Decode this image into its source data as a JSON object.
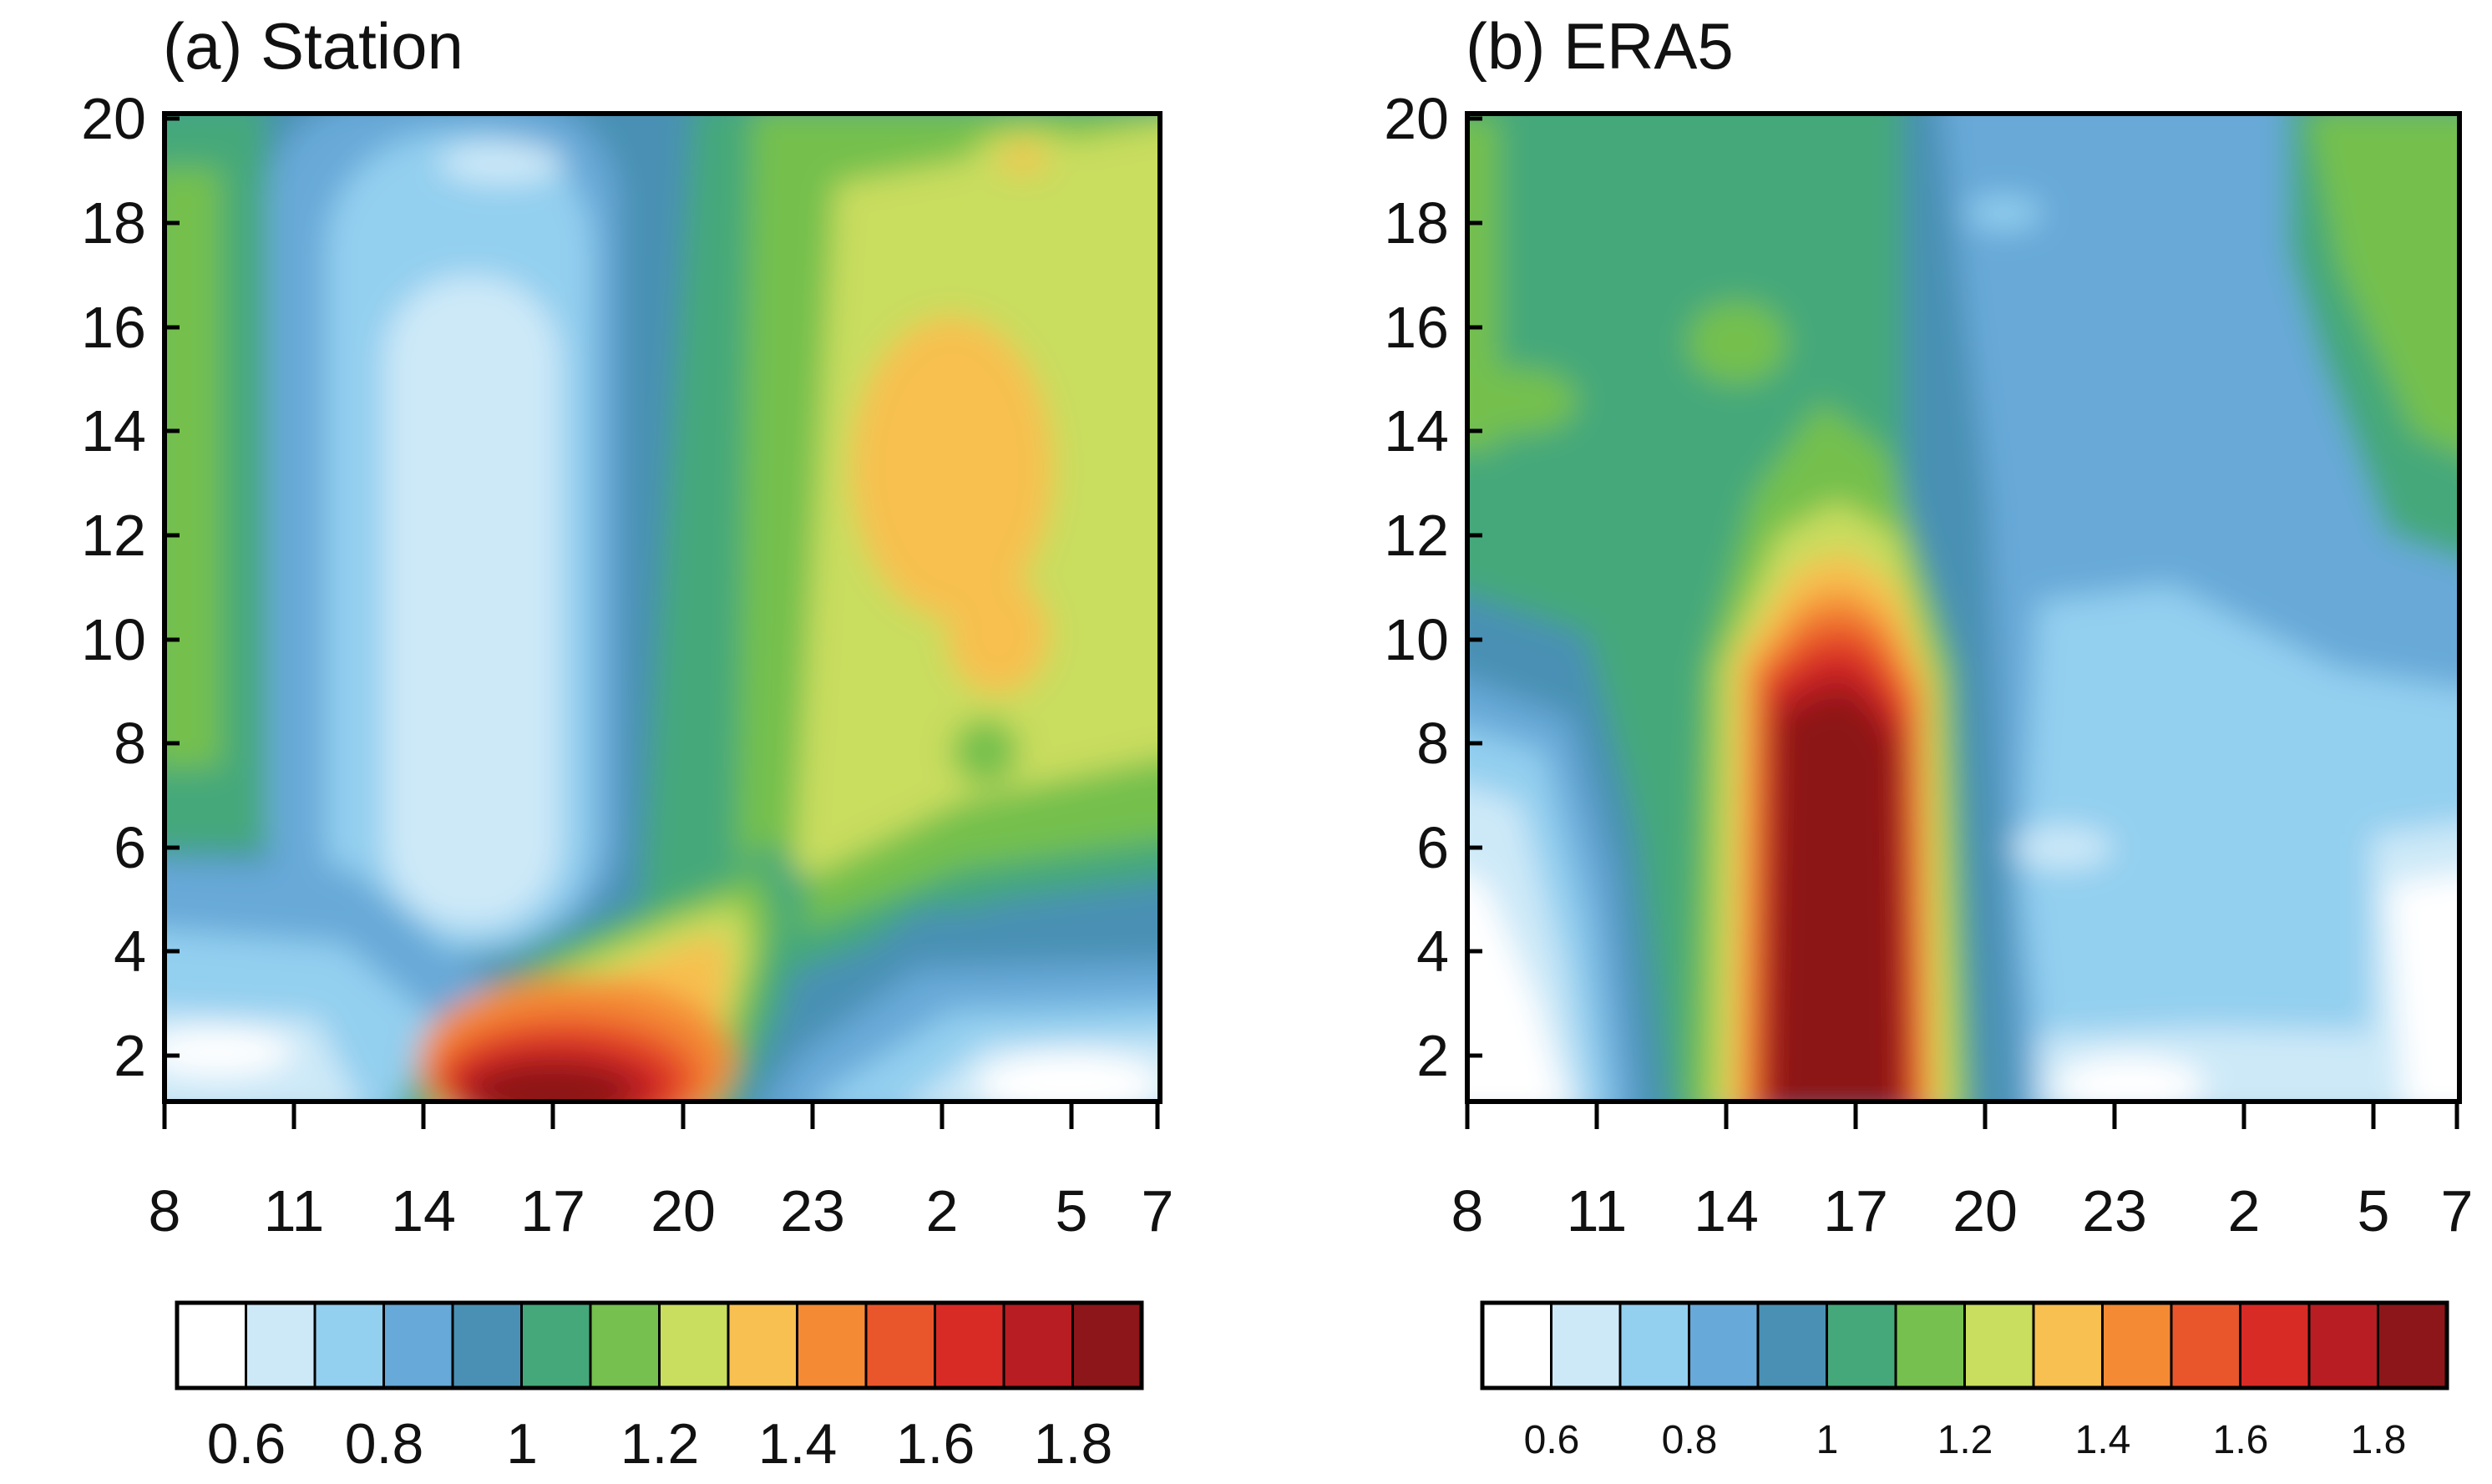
{
  "chart_data": [
    {
      "type": "heatmap",
      "title": "(a) Station",
      "x_tick_labels": [
        "8",
        "11",
        "14",
        "17",
        "20",
        "23",
        "2",
        "5",
        "7"
      ],
      "y_tick_labels": [
        "2",
        "4",
        "6",
        "8",
        "10",
        "12",
        "14",
        "16",
        "18",
        "20"
      ],
      "ylim": [
        1,
        20
      ],
      "grid": false,
      "colorbar": {
        "boundaries": [
          0.5,
          0.6,
          0.7,
          0.8,
          0.9,
          1.0,
          1.1,
          1.2,
          1.3,
          1.4,
          1.5,
          1.6,
          1.7,
          1.8,
          1.9
        ],
        "labels": [
          "0.6",
          "0.8",
          "1",
          "1.2",
          "1.4",
          "1.6",
          "1.8"
        ],
        "colors": [
          "#ffffff",
          "#cde9f8",
          "#93cfef",
          "#67a9d8",
          "#4a90b4",
          "#45a87a",
          "#75c04e",
          "#c9dd5e",
          "#f7c050",
          "#f48a34",
          "#e9562b",
          "#d92b26",
          "#b71d22",
          "#8c1619"
        ]
      },
      "features": [
        {
          "desc": "morning warm band",
          "x": 8.5,
          "y": 12,
          "value": 1.1
        },
        {
          "desc": "low-value column",
          "x": 15.5,
          "y": 12,
          "value": 0.6
        },
        {
          "desc": "afternoon surface maximum",
          "x": 17.5,
          "y": 1.8,
          "value": 1.9
        },
        {
          "desc": "night elevated maximum",
          "x": 27,
          "y": 12.5,
          "value": 1.4
        },
        {
          "desc": "late-night surface minimum",
          "x": 29,
          "y": 1.6,
          "value": 0.5
        }
      ]
    },
    {
      "type": "heatmap",
      "title": "(b) ERA5",
      "x_tick_labels": [
        "8",
        "11",
        "14",
        "17",
        "20",
        "23",
        "2",
        "5",
        "7"
      ],
      "y_tick_labels": [
        "2",
        "4",
        "6",
        "8",
        "10",
        "12",
        "14",
        "16",
        "18",
        "20"
      ],
      "ylim": [
        1,
        20
      ],
      "grid": false,
      "colorbar": {
        "boundaries": [
          0.5,
          0.6,
          0.7,
          0.8,
          0.9,
          1.0,
          1.1,
          1.2,
          1.3,
          1.4,
          1.5,
          1.6,
          1.7,
          1.8,
          1.9
        ],
        "labels": [
          "0.6",
          "0.8",
          "1",
          "1.2",
          "1.4",
          "1.6",
          "1.8"
        ],
        "colors": [
          "#ffffff",
          "#cde9f8",
          "#93cfef",
          "#67a9d8",
          "#4a90b4",
          "#45a87a",
          "#75c04e",
          "#c9dd5e",
          "#f7c050",
          "#f48a34",
          "#e9562b",
          "#d92b26",
          "#b71d22",
          "#8c1619"
        ]
      },
      "features": [
        {
          "desc": "afternoon deep maximum",
          "x": 17,
          "y": 5,
          "value": 1.9
        },
        {
          "desc": "morning surface minimum",
          "x": 8.5,
          "y": 2.5,
          "value": 0.5
        },
        {
          "desc": "night near-surface minimum",
          "x": 29,
          "y": 5,
          "value": 0.7
        },
        {
          "desc": "upper-level band",
          "x": 17,
          "y": 16,
          "value": 1.05
        }
      ]
    }
  ]
}
